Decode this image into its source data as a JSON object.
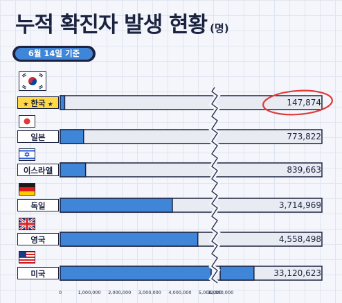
{
  "header": {
    "title": "누적 확진자 발생 현황",
    "unit": "(명)",
    "date": "6월 14일 기준"
  },
  "colors": {
    "bar_fill": "#3f86d8",
    "track": "#e8ebf2",
    "dark": "#1c2340",
    "highlight_label": "#ffd84a",
    "circle": "#e23a3a"
  },
  "chart_data": {
    "type": "bar",
    "orientation": "horizontal",
    "axis_break": "between 5,000,000 and 32,000,000",
    "categories": [
      "한국",
      "일본",
      "이스라엘",
      "독일",
      "영국",
      "미국"
    ],
    "values": [
      147874,
      773822,
      839663,
      3714969,
      4558498,
      33120623
    ],
    "value_labels": [
      "147,874",
      "773,822",
      "839,663",
      "3,714,969",
      "4,558,498",
      "33,120,623"
    ],
    "highlight_category": "한국",
    "xticks": [
      "0",
      "1,000,000",
      "2,000,000",
      "3,000,000",
      "4,000,000",
      "5,000,000",
      "32,000,000"
    ],
    "xtick_values": [
      0,
      1000000,
      2000000,
      3000000,
      4000000,
      5000000,
      32000000
    ],
    "flags": [
      "korea-flag-icon",
      "japan-flag-icon",
      "israel-flag-icon",
      "germany-flag-icon",
      "uk-flag-icon",
      "usa-flag-icon"
    ]
  }
}
